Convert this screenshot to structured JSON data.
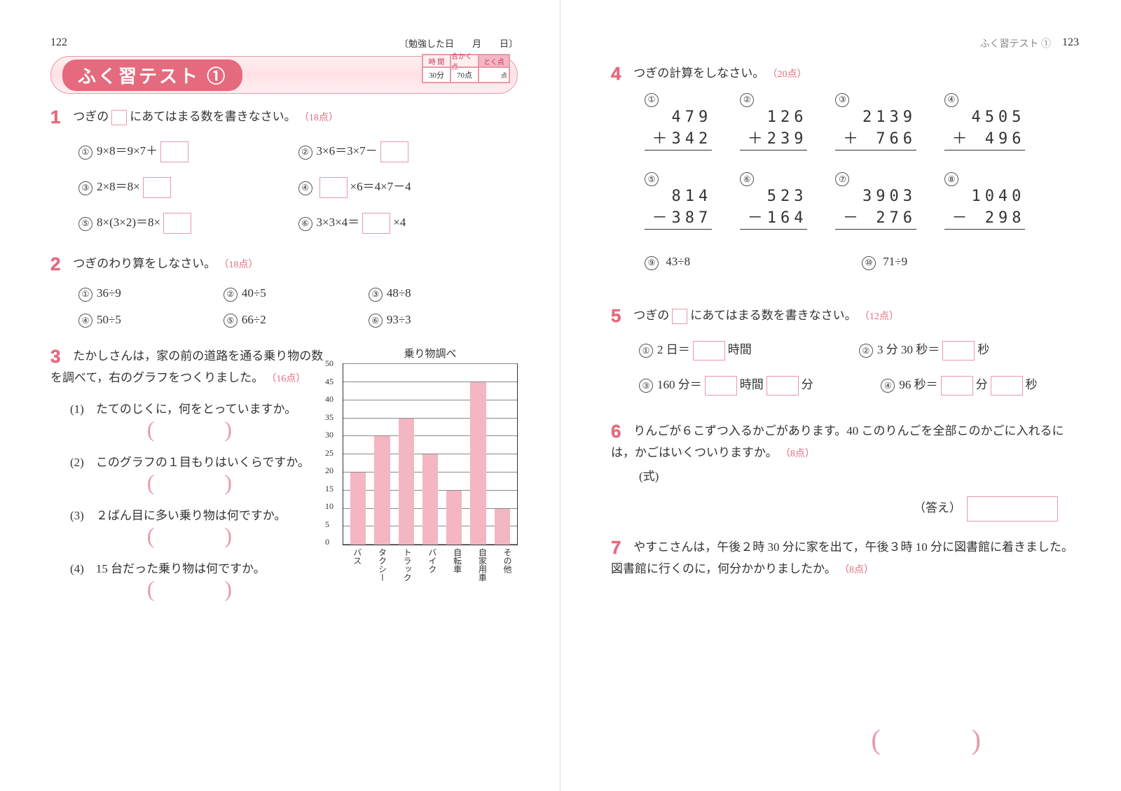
{
  "page_left_num": "122",
  "page_right_num": "123",
  "right_header_label": "ふく習テスト ①",
  "study_date": "〔勉強した日　　月　　日〕",
  "title": "ふく習テスト ①",
  "score_box": {
    "headers": [
      "時 間",
      "合かく点",
      "とく点"
    ],
    "values": [
      "30分",
      "70点",
      ""
    ],
    "unit": "点"
  },
  "q1": {
    "num": "1",
    "text_a": "つぎの",
    "text_b": "にあてはまる数を書きなさい。",
    "pts": "（18点）",
    "items": [
      "9×8＝9×7＋",
      "3×6＝3×7－",
      "2×8＝8×",
      "×6＝4×7－4",
      "8×(3×2)＝8×",
      "3×3×4＝　×4"
    ],
    "circled": [
      "①",
      "②",
      "③",
      "④",
      "⑤",
      "⑥"
    ]
  },
  "q2": {
    "num": "2",
    "text": "つぎのわり算をしなさい。",
    "pts": "（18点）",
    "items": [
      "36÷9",
      "40÷5",
      "48÷8",
      "50÷5",
      "66÷2",
      "93÷3"
    ],
    "circled": [
      "①",
      "②",
      "③",
      "④",
      "⑤",
      "⑥"
    ]
  },
  "q3": {
    "num": "3",
    "text": "たかしさんは，家の前の道路を通る乗り物の数を調べて，右のグラフをつくりました。",
    "pts": "（16点）",
    "subs": [
      "たてのじくに，何をとっていますか。",
      "このグラフの１目もりはいくらですか。",
      "２ばん目に多い乗り物は何ですか。",
      "15 台だった乗り物は何ですか。"
    ],
    "sub_nums": [
      "(1)",
      "(2)",
      "(3)",
      "(4)"
    ],
    "chart": {
      "title": "乗り物調べ",
      "unit": "(台)",
      "ymax": 50,
      "ystep": 5,
      "yticks": [
        "50",
        "45",
        "40",
        "35",
        "30",
        "25",
        "20",
        "15",
        "10",
        "5",
        "0"
      ],
      "categories": [
        "バス",
        "タクシー",
        "トラック",
        "バイク",
        "自転車",
        "自家用車",
        "その他"
      ],
      "values": [
        20,
        30,
        35,
        25,
        15,
        45,
        10
      ],
      "bar_color": "#f4b6c2",
      "grid_color": "#888888",
      "border_color": "#333333"
    }
  },
  "q4": {
    "num": "4",
    "text": "つぎの計算をしなさい。",
    "pts": "（20点）",
    "problems": [
      {
        "n": "①",
        "a": "479",
        "op": "＋",
        "b": "342"
      },
      {
        "n": "②",
        "a": "126",
        "op": "＋",
        "b": "239"
      },
      {
        "n": "③",
        "a": "2139",
        "op": "＋",
        "b": " 766"
      },
      {
        "n": "④",
        "a": "4505",
        "op": "＋",
        "b": " 496"
      },
      {
        "n": "⑤",
        "a": "814",
        "op": "－",
        "b": "387"
      },
      {
        "n": "⑥",
        "a": "523",
        "op": "－",
        "b": "164"
      },
      {
        "n": "⑦",
        "a": "3903",
        "op": "－",
        "b": " 276"
      },
      {
        "n": "⑧",
        "a": "1040",
        "op": "－",
        "b": " 298"
      }
    ],
    "inline": [
      {
        "n": "⑨",
        "t": "43÷8"
      },
      {
        "n": "⑩",
        "t": "71÷9"
      }
    ]
  },
  "q5": {
    "num": "5",
    "text_a": "つぎの",
    "text_b": "にあてはまる数を書きなさい。",
    "pts": "（12点）",
    "items": [
      {
        "n": "①",
        "pre": "2 日＝",
        "post": "時間"
      },
      {
        "n": "②",
        "pre": "3 分 30 秒＝",
        "post": "秒"
      },
      {
        "n": "③",
        "pre": "160 分＝",
        "mid": "時間",
        "post": "分"
      },
      {
        "n": "④",
        "pre": "96 秒＝",
        "mid": "分",
        "post": "秒"
      }
    ]
  },
  "q6": {
    "num": "6",
    "text": "りんごが６こずつ入るかごがあります。40 このりんごを全部このかごに入れるには，かごはいくついりますか。",
    "pts": "（8点）",
    "shiki": "(式)",
    "ans_label": "（答え）"
  },
  "q7": {
    "num": "7",
    "text": "やすこさんは，午後２時 30 分に家を出て，午後３時 10 分に図書館に着きました。図書館に行くのに，何分かかりましたか。",
    "pts": "（8点）"
  }
}
